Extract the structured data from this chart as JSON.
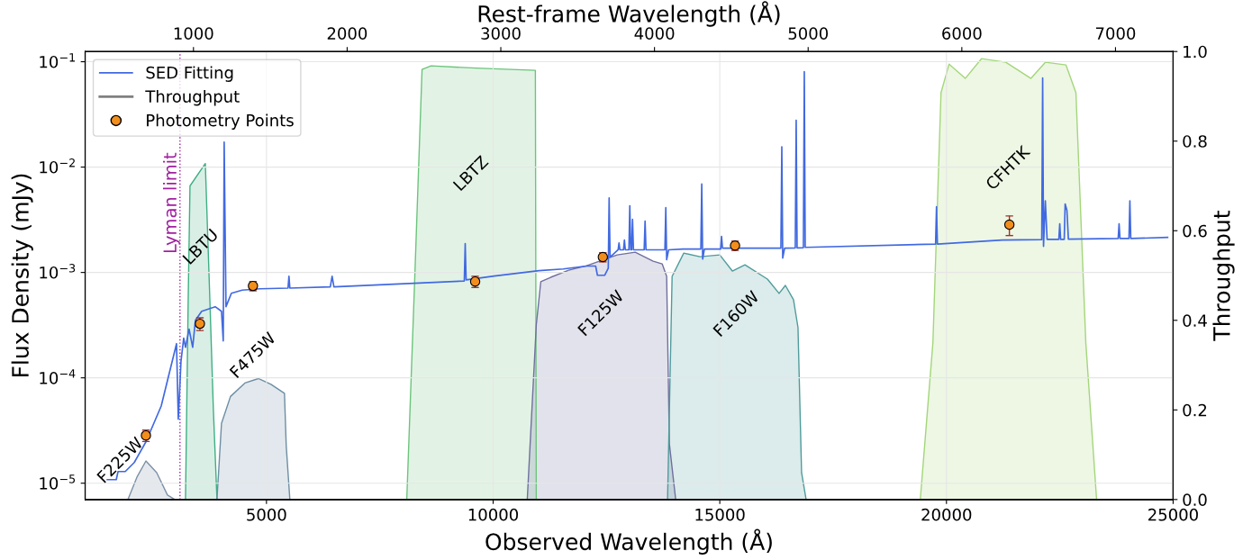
{
  "chart_data": {
    "type": "line",
    "xlabel": "Observed Wavelength (Å)",
    "ylabel": "Flux Density (mJy)",
    "y2label": "Throughput",
    "x2label": "Rest-frame Wavelength (Å)",
    "xlim": [
      1000,
      25000
    ],
    "xticks": [
      5000,
      10000,
      15000,
      20000,
      25000
    ],
    "x2lim": [
      295,
      7375
    ],
    "x2ticks": [
      1000,
      2000,
      3000,
      4000,
      5000,
      6000,
      7000
    ],
    "log": "y",
    "ylim": [
      7e-06,
      0.125
    ],
    "yticks": [
      {
        "value": 1e-05,
        "label": "10$^{−5}$"
      },
      {
        "value": 0.0001,
        "label": "10$^{−4}$"
      },
      {
        "value": 0.001,
        "label": "10$^{−3}$"
      },
      {
        "value": 0.01,
        "label": "10$^{−2}$"
      },
      {
        "value": 0.1,
        "label": "10$^{−1}$"
      }
    ],
    "y2lim": [
      0,
      1
    ],
    "y2ticks": [
      {
        "value": 0,
        "label": "0.0"
      },
      {
        "value": 0.2,
        "label": "0.2"
      },
      {
        "value": 0.4,
        "label": "0.4"
      },
      {
        "value": 0.6,
        "label": "0.6"
      },
      {
        "value": 0.8,
        "label": "0.8"
      },
      {
        "value": 1,
        "label": "1.0"
      }
    ],
    "grid": true,
    "legend": "top left",
    "series": [
      {
        "name": "F225W",
        "type": "area",
        "axis": "y2",
        "color": "#7d8fa6",
        "x": [
          1944,
          2143,
          2341,
          2579,
          2817,
          2976
        ],
        "values": [
          0,
          0.05,
          0.086,
          0.06,
          0.01,
          0
        ]
      },
      {
        "name": "LBTU",
        "type": "area",
        "axis": "y2",
        "color": "#3fae83",
        "x": [
          3214,
          3274,
          3313,
          3651,
          3750,
          3829,
          3908
        ],
        "values": [
          0,
          0.45,
          0.7,
          0.75,
          0.45,
          0.2,
          0
        ]
      },
      {
        "name": "F475W",
        "type": "area",
        "axis": "y2",
        "color": "#6d8ea3",
        "x": [
          3908,
          4008,
          4206,
          4524,
          4821,
          5099,
          5397,
          5436,
          5516
        ],
        "values": [
          0,
          0.17,
          0.23,
          0.26,
          0.27,
          0.257,
          0.237,
          0.12,
          0
        ]
      },
      {
        "name": "LBTZ",
        "type": "area",
        "axis": "y2",
        "color": "#6cc47c",
        "x": [
          8095,
          8273,
          8432,
          8630,
          9622,
          10932,
          10952
        ],
        "values": [
          0,
          0.5,
          0.96,
          0.968,
          0.963,
          0.958,
          0
        ]
      },
      {
        "name": "F125W",
        "type": "area",
        "axis": "y2",
        "color": "#6f6f9e",
        "x": [
          10753,
          10952,
          11051,
          11269,
          11666,
          12063,
          12737,
          13134,
          13531,
          13729,
          13828,
          13888,
          14027
        ],
        "values": [
          0,
          0.39,
          0.486,
          0.496,
          0.512,
          0.522,
          0.546,
          0.552,
          0.532,
          0.526,
          0.498,
          0.124,
          0
        ]
      },
      {
        "name": "F160W",
        "type": "area",
        "axis": "y2",
        "color": "#4f9b9b",
        "x": [
          13848,
          13948,
          14205,
          14563,
          15000,
          15277,
          15555,
          16051,
          16308,
          16447,
          16626,
          16725,
          16804,
          16904
        ],
        "values": [
          0,
          0.498,
          0.55,
          0.542,
          0.546,
          0.51,
          0.524,
          0.492,
          0.46,
          0.478,
          0.446,
          0.384,
          0.06,
          0
        ]
      },
      {
        "name": "CFHTK",
        "type": "area",
        "axis": "y2",
        "color": "#a3d67a",
        "x": [
          19423,
          19701,
          19880,
          20058,
          20415,
          20772,
          21308,
          21864,
          22181,
          22637,
          22856,
          23074,
          23312
        ],
        "values": [
          0,
          0.35,
          0.908,
          0.972,
          0.94,
          0.984,
          0.976,
          0.94,
          0.976,
          0.97,
          0.908,
          0.35,
          0
        ]
      },
      {
        "name": "SED Fitting",
        "color": "#4169e1",
        "x": [
          1488,
          1687,
          1726,
          1885,
          2083,
          2341,
          2678,
          3016,
          3055,
          3115,
          3174,
          3214,
          3293,
          3373,
          3432,
          3571,
          3869,
          4008,
          4047,
          4067,
          4107,
          4226,
          4464,
          4861,
          5476,
          5496,
          5516,
          6408,
          6448,
          6488,
          9364,
          9384,
          9404,
          10019,
          11011,
          11547,
          12063,
          12261,
          12301,
          12460,
          12540,
          12559,
          12580,
          12757,
          12777,
          12797,
          12876,
          12896,
          12916,
          12995,
          13015,
          13035,
          13055,
          13075,
          13095,
          13332,
          13352,
          13372,
          13789,
          13809,
          13828,
          13870,
          14186,
          14582,
          14602,
          14622,
          14660,
          15019,
          15039,
          15059,
          16170,
          16348,
          16368,
          16388,
          16430,
          16665,
          16685,
          16705,
          16844,
          16864,
          16884,
          19760,
          19780,
          19800,
          21229,
          22102,
          22122,
          22141,
          22181,
          22220,
          22479,
          22499,
          22519,
          22598,
          22618,
          22657,
          22690,
          23788,
          23808,
          23828,
          24026,
          24046,
          24066,
          24879
        ],
        "values": [
          1.08e-05,
          1.08e-05,
          1.29e-05,
          1.29e-05,
          1.57e-05,
          2.47e-05,
          5.4e-05,
          0.000211,
          4.05e-05,
          0.000145,
          0.000238,
          0.000195,
          0.00029,
          0.000195,
          0.000352,
          0.000428,
          0.000473,
          0.000428,
          0.000224,
          0.0173,
          0.000473,
          0.000635,
          0.00068,
          0.0007,
          0.00071,
          0.00092,
          0.00071,
          0.00073,
          0.00092,
          0.00073,
          0.00083,
          0.00188,
          0.00085,
          0.000925,
          0.00104,
          0.00108,
          0.00115,
          0.00115,
          0.00094,
          0.00094,
          0.0011,
          0.0051,
          0.0014,
          0.00164,
          0.00191,
          0.00164,
          0.00164,
          0.00203,
          0.00164,
          0.00164,
          0.0043,
          0.00164,
          0.00164,
          0.00319,
          0.00164,
          0.00164,
          0.00307,
          0.00164,
          0.00164,
          0.00412,
          0.00132,
          0.00164,
          0.00167,
          0.00167,
          0.0069,
          0.00134,
          0.00167,
          0.00167,
          0.0022,
          0.0017,
          0.0017,
          0.0017,
          0.0156,
          0.00137,
          0.0017,
          0.00171,
          0.0278,
          0.00171,
          0.00172,
          0.0805,
          0.00173,
          0.00186,
          0.0042,
          0.00186,
          0.00203,
          0.00205,
          0.07,
          0.00177,
          0.00478,
          0.00206,
          0.00206,
          0.0029,
          0.00206,
          0.00206,
          0.00447,
          0.00389,
          0.00207,
          0.0021,
          0.0029,
          0.0021,
          0.0021,
          0.00478,
          0.0021,
          0.00215
        ]
      },
      {
        "name": "Photometry Points",
        "type": "scatter",
        "color": "#f28e1c",
        "marker": "circle",
        "x": [
          2341,
          3532,
          4702,
          9603,
          12420,
          15336,
          21388
        ],
        "values": [
          2.84e-05,
          0.000326,
          0.000745,
          0.00082,
          0.0014,
          0.0018,
          0.00284
        ],
        "errors": [
          3.5e-06,
          4.5e-05,
          7.5e-05,
          0.0001,
          0.00014,
          0.00018,
          0.0006
        ]
      }
    ],
    "ref_lines": [
      {
        "axis": "x",
        "value": 3092,
        "label": "Lyman limit",
        "color": "#a020a0",
        "line_style": "dotted"
      }
    ],
    "annotations": [
      "Throughput"
    ]
  }
}
